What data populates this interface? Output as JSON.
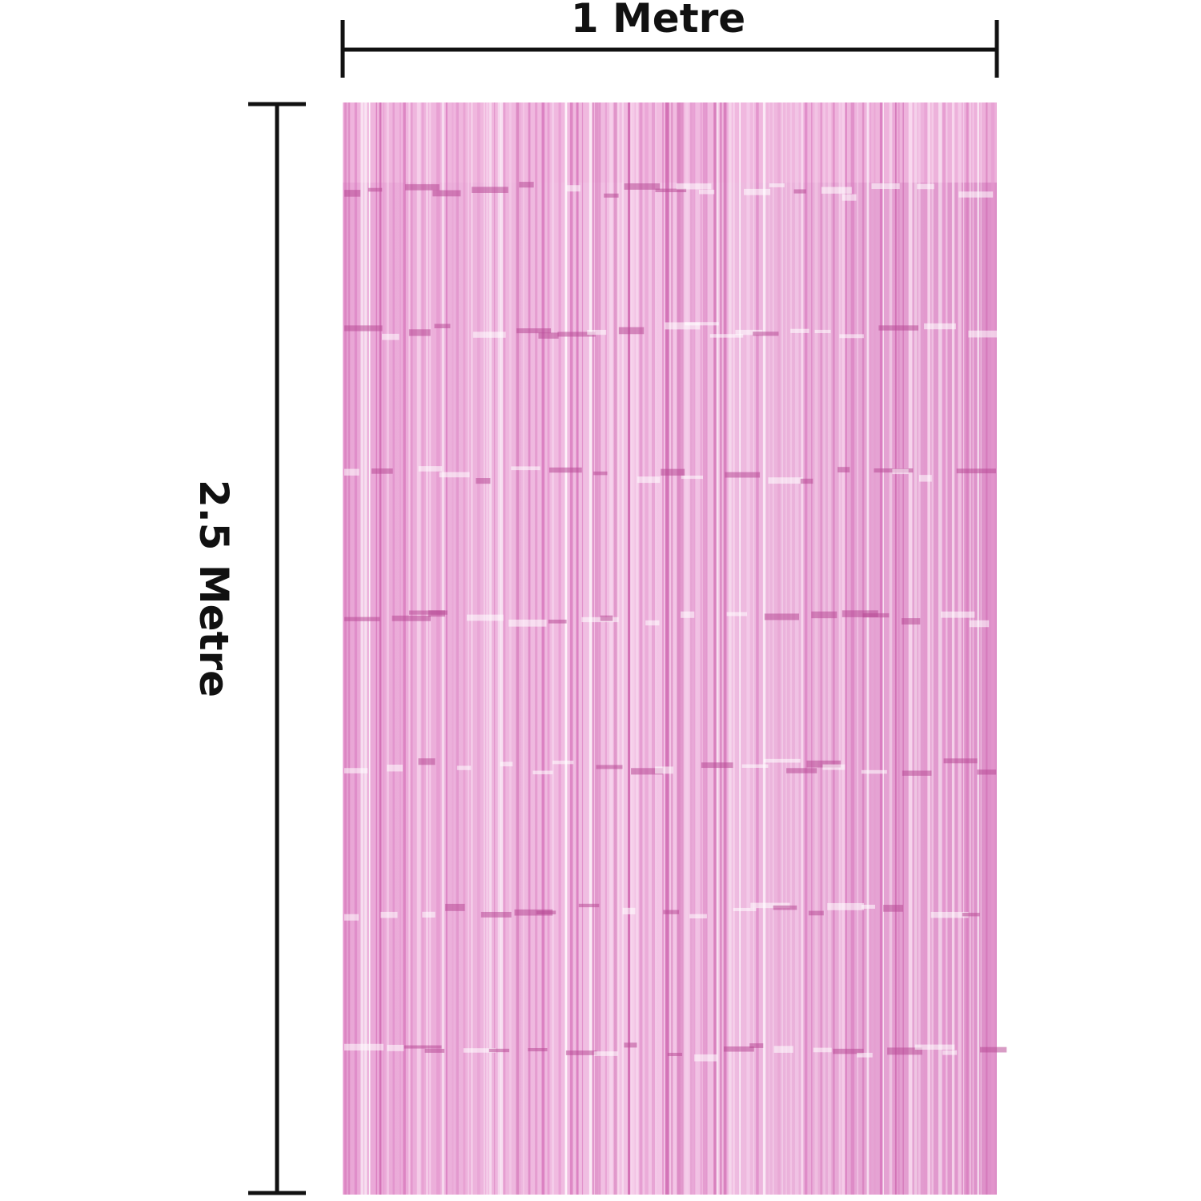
{
  "labels": {
    "width": "1 Metre",
    "height": "2.5 Metre"
  }
}
